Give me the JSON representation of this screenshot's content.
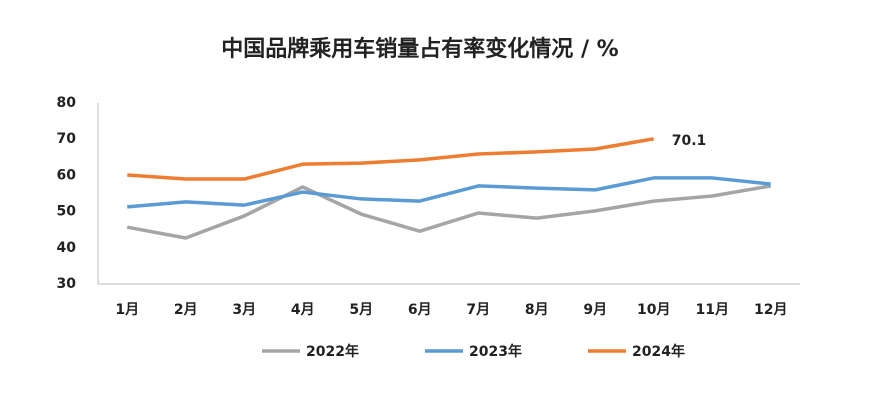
{
  "chart_data": {
    "type": "line",
    "title": "中国品牌乘用车销量占有率变化情况 / %",
    "categories": [
      "1月",
      "2月",
      "3月",
      "4月",
      "5月",
      "6月",
      "7月",
      "8月",
      "9月",
      "10月",
      "11月",
      "12月"
    ],
    "series": [
      {
        "name": "2022年",
        "color": "#a5a5a5",
        "values": [
          45.7,
          42.7,
          48.8,
          56.8,
          49.3,
          44.6,
          49.6,
          48.2,
          50.2,
          52.9,
          54.3,
          57.1
        ]
      },
      {
        "name": "2023年",
        "color": "#5b9bd5",
        "values": [
          51.3,
          52.7,
          51.8,
          55.4,
          53.5,
          52.9,
          57.1,
          56.5,
          56.0,
          59.3,
          59.3,
          57.6
        ]
      },
      {
        "name": "2024年",
        "color": "#ed7d31",
        "values": [
          60.1,
          59.0,
          59.0,
          63.1,
          63.4,
          64.3,
          65.9,
          66.5,
          67.3,
          70.1,
          null,
          null
        ]
      }
    ],
    "ylim": [
      30,
      80
    ],
    "yticks": [
      30,
      40,
      50,
      60,
      70,
      80
    ],
    "legend": "bottom"
  }
}
